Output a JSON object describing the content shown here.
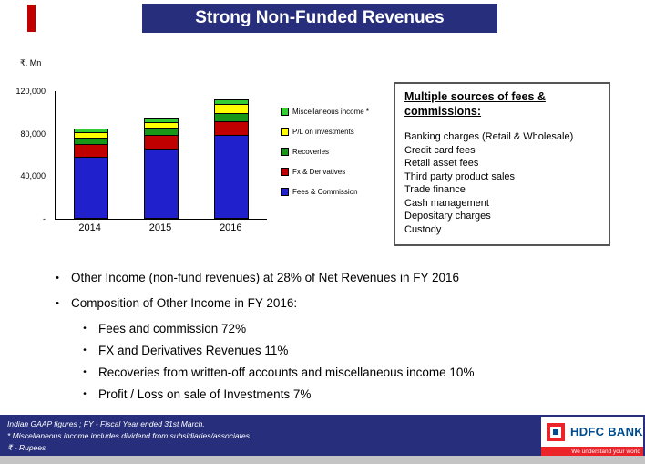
{
  "title": "Strong Non-Funded Revenues",
  "chart": {
    "unit_label": "₹. Mn",
    "y_ticks": [
      {
        "label": "120,000",
        "value": 120000
      },
      {
        "label": "80,000",
        "value": 80000
      },
      {
        "label": "40,000",
        "value": 40000
      },
      {
        "label": "-",
        "value": 0
      }
    ]
  },
  "chart_data": {
    "type": "bar",
    "stacked": true,
    "title": "",
    "xlabel": "",
    "ylabel": "₹. Mn",
    "ylim": [
      0,
      120000
    ],
    "legend_position": "right",
    "categories": [
      "2014",
      "2015",
      "2016"
    ],
    "series": [
      {
        "name": "Fees & Commission",
        "color": "#2020CC",
        "values": [
          57000,
          64000,
          77000
        ]
      },
      {
        "name": "Fx & Derivatives",
        "color": "#C00000",
        "values": [
          10500,
          12000,
          12000
        ]
      },
      {
        "name": "Recoveries",
        "color": "#189618",
        "values": [
          5500,
          6000,
          7000
        ]
      },
      {
        "name": "P/L on investments",
        "color": "#FFFF00",
        "values": [
          4000,
          5000,
          7500
        ]
      },
      {
        "name": "Miscellaneous income *",
        "color": "#33CC33",
        "values": [
          3000,
          3000,
          3500
        ]
      }
    ]
  },
  "fees_box": {
    "title": "Multiple sources of fees & commissions:",
    "items": [
      "Banking charges (Retail & Wholesale)",
      "Credit card fees",
      "Retail asset fees",
      "Third party product sales",
      "Trade finance",
      "Cash management",
      "Depositary charges",
      "Custody"
    ]
  },
  "bullets": {
    "items": [
      {
        "text": "Other Income (non-fund revenues) at 28% of Net Revenues in FY 2016",
        "sub": []
      },
      {
        "text": "Composition of Other Income in FY 2016:",
        "sub": [
          "Fees and commission  72%",
          "FX and Derivatives Revenues 11%",
          "Recoveries from written-off accounts and miscellaneous income 10%",
          "Profit / Loss on sale of Investments 7%"
        ]
      }
    ]
  },
  "footer": {
    "lines": [
      "Indian GAAP figures ; FY - Fiscal Year ended 31st March.",
      "* Miscellaneous income includes dividend from subsidiaries/associates.",
      "₹ - Rupees"
    ]
  },
  "logo": {
    "brand": "HDFC BANK",
    "tagline": "We understand your world",
    "red": "#ED232A",
    "blue": "#004C8F"
  }
}
